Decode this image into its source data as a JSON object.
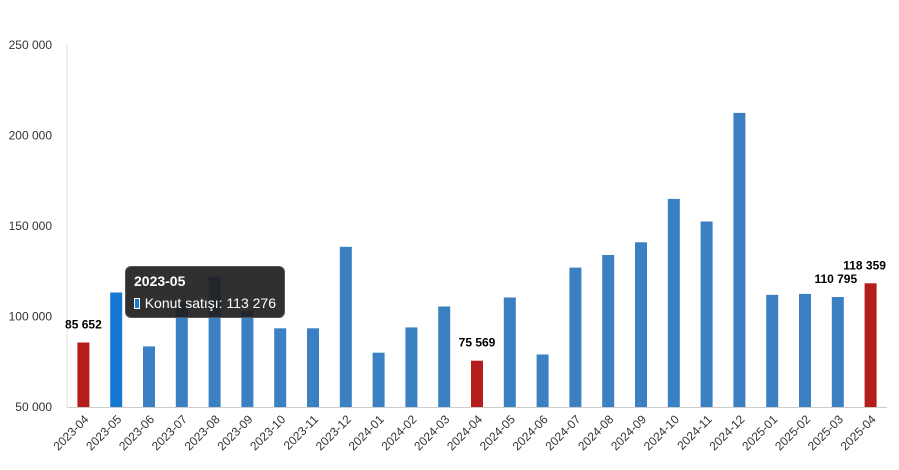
{
  "chart_data": {
    "type": "bar",
    "categories": [
      "2023-04",
      "2023-05",
      "2023-06",
      "2023-07",
      "2023-08",
      "2023-09",
      "2023-10",
      "2023-11",
      "2023-12",
      "2024-01",
      "2024-02",
      "2024-03",
      "2024-04",
      "2024-05",
      "2024-06",
      "2024-07",
      "2024-08",
      "2024-09",
      "2024-10",
      "2024-11",
      "2024-12",
      "2025-01",
      "2025-02",
      "2025-03",
      "2025-04"
    ],
    "series": [
      {
        "name": "Konut satışı",
        "values": [
          85652,
          113276,
          83500,
          108000,
          122000,
          103000,
          93500,
          93500,
          138500,
          80000,
          94000,
          105500,
          75569,
          110500,
          79000,
          127000,
          134000,
          141000,
          165000,
          152500,
          212500,
          112000,
          112500,
          110795,
          118359
        ]
      }
    ],
    "highlight_indices": [
      0,
      12,
      24
    ],
    "hovered_index": 1,
    "data_labels": [
      {
        "index": 0,
        "text": "85 652"
      },
      {
        "index": 12,
        "text": "75 569"
      },
      {
        "index": 23,
        "text": "110 795"
      },
      {
        "index": 24,
        "text": "118 359"
      }
    ],
    "y_ticks": [
      50000,
      100000,
      150000,
      200000,
      250000
    ],
    "y_tick_labels": [
      "50 000",
      "100 000",
      "150 000",
      "200 000",
      "250 000"
    ],
    "ylim": [
      50000,
      250000
    ],
    "title": "",
    "xlabel": "",
    "ylabel": "",
    "grid": false,
    "legend": "none",
    "colors": {
      "bar": "#3a80c2",
      "bar_hover": "#1479d3",
      "highlight": "#b51c1c",
      "axis": "#cccccc",
      "text": "#333333"
    }
  },
  "tooltip": {
    "title": "2023-05",
    "row": "Konut satışı: 113 276"
  }
}
